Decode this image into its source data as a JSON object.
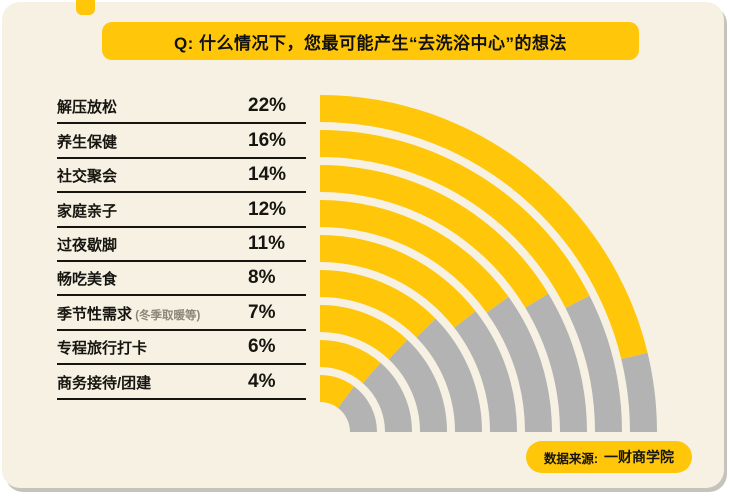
{
  "title": "Q: 什么情况下，您最可能产生“去洗浴中心”的想法",
  "source_badge": {
    "prefix": "数据来源:",
    "name": "一财商学院"
  },
  "colors": {
    "yellow": "#ffc60a",
    "gray": "#b3b3b3",
    "card_bg": "#f6f1e3",
    "text": "#16150f"
  },
  "chart_data": {
    "type": "radial-bar",
    "title": "Q: 什么情况下，您最可能产生“去洗浴中心”的想法",
    "categories": [
      "解压放松",
      "养生保健",
      "社交聚会",
      "家庭亲子",
      "过夜歇脚",
      "畅吃美食",
      "季节性需求",
      "专程旅行打卡",
      "商务接待/团建"
    ],
    "values": [
      22,
      16,
      14,
      12,
      11,
      8,
      7,
      6,
      4
    ],
    "value_suffix": "%",
    "notes": {
      "6": "(冬季取暖等)"
    },
    "legend": "none",
    "grid": "off",
    "value_range": [
      0,
      22
    ],
    "filled_color_role": "yellow",
    "remainder_color_role": "gray"
  }
}
